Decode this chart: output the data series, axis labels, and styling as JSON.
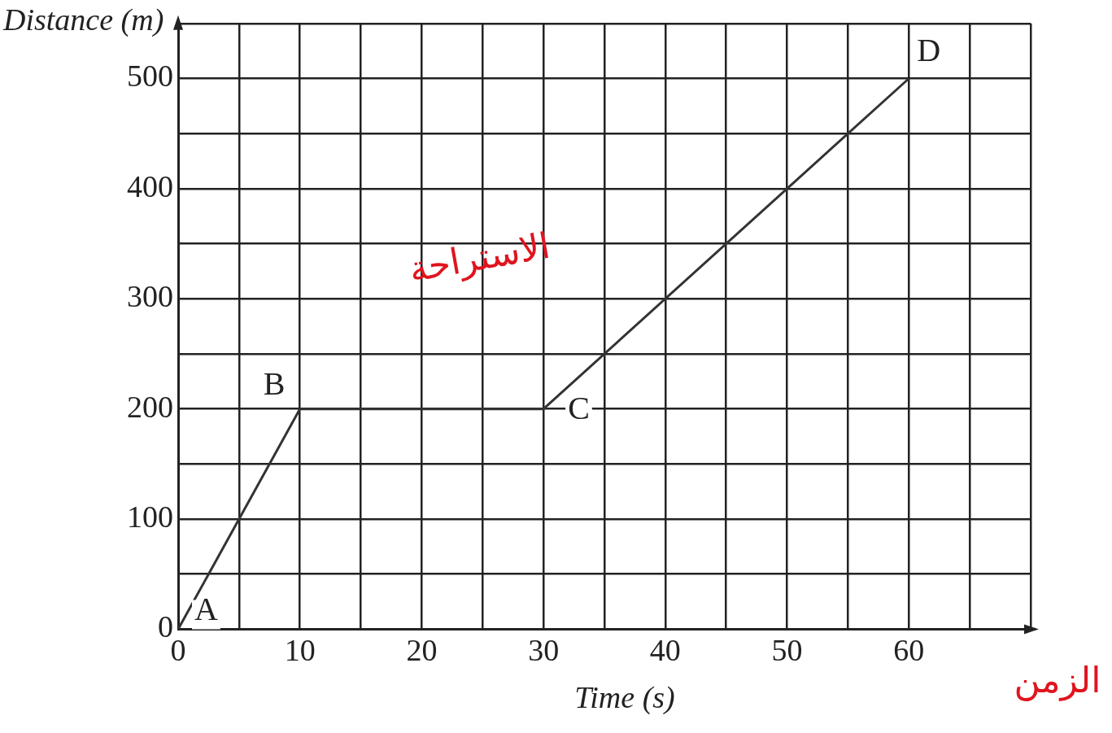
{
  "chart_data": {
    "type": "line",
    "xlabel": "Time (s)",
    "ylabel": "Distance (m)",
    "x": [
      0,
      10,
      30,
      60
    ],
    "series": [
      {
        "color": "#333333",
        "values": [
          0,
          200,
          200,
          500
        ]
      }
    ],
    "xlim": [
      0,
      70
    ],
    "xticks": [
      0,
      {
        "value": 5,
        "label": null
      },
      10,
      {
        "value": 15,
        "label": null
      },
      20,
      {
        "value": 25,
        "label": null
      },
      30,
      {
        "value": 35,
        "label": null
      },
      40,
      {
        "value": 45,
        "label": null
      },
      50,
      {
        "value": 55,
        "label": null
      },
      60,
      {
        "value": 65,
        "label": null
      },
      {
        "value": 70,
        "label": null
      }
    ],
    "ylim": [
      0,
      550
    ],
    "yticks": [
      0,
      {
        "value": 50,
        "label": null
      },
      100,
      {
        "value": 150,
        "label": null
      },
      200,
      {
        "value": 250,
        "label": null
      },
      300,
      {
        "value": 350,
        "label": null
      },
      400,
      {
        "value": 450,
        "label": null
      },
      500,
      {
        "value": 550,
        "label": null
      }
    ],
    "grid": true,
    "legend": false,
    "marker": "none",
    "line_style": "solid",
    "annotations": [
      {
        "text": "A",
        "x": 0,
        "y": 0
      },
      {
        "text": "B",
        "x": 10,
        "y": 200
      },
      {
        "text": "C",
        "x": 30,
        "y": 200
      },
      {
        "text": "D",
        "x": 60,
        "y": 500
      },
      "الاستراحة",
      "الزمن"
    ]
  }
}
